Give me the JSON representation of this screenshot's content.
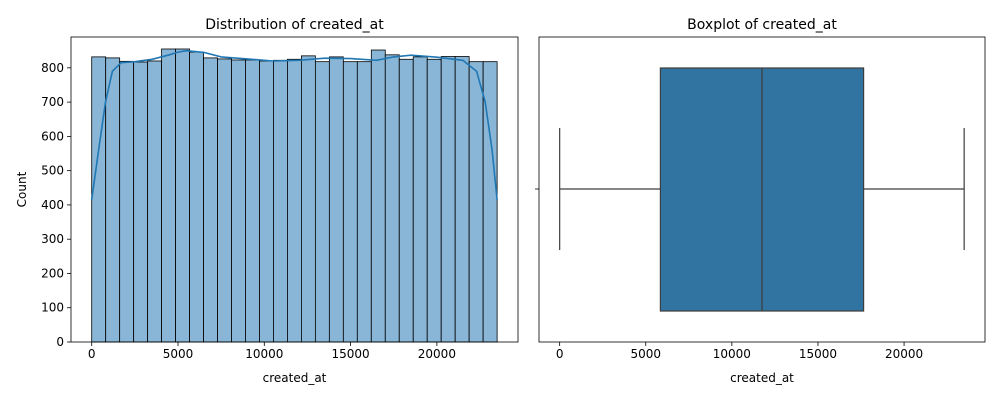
{
  "chart_data": [
    {
      "type": "histogram",
      "title": "Distribution of created_at",
      "xlabel": "created_at",
      "ylabel": "Count",
      "xlim": [
        -1200,
        24700
      ],
      "ylim": [
        0,
        890
      ],
      "xticks": [
        0,
        5000,
        10000,
        15000,
        20000
      ],
      "yticks": [
        0,
        100,
        200,
        300,
        400,
        500,
        600,
        700,
        800
      ],
      "bin_start": 0,
      "bin_width": 810,
      "counts": [
        832,
        829,
        819,
        817,
        820,
        855,
        855,
        846,
        829,
        826,
        823,
        823,
        820,
        822,
        825,
        835,
        818,
        832,
        818,
        818,
        852,
        838,
        825,
        832,
        825,
        833,
        833,
        818,
        818
      ],
      "kde": {
        "x": [
          0,
          400,
          800,
          1200,
          1700,
          2500,
          3500,
          4500,
          5000,
          5500,
          6500,
          7500,
          9000,
          10500,
          12000,
          13500,
          15000,
          16500,
          17500,
          18500,
          20000,
          21500,
          22300,
          22800,
          23200,
          23490
        ],
        "y": [
          415,
          560,
          700,
          790,
          815,
          818,
          825,
          838,
          846,
          850,
          845,
          832,
          826,
          820,
          822,
          828,
          827,
          822,
          832,
          837,
          831,
          822,
          790,
          700,
          560,
          415
        ]
      },
      "colors": {
        "bar_fill": "#89b6d7",
        "bar_edge": "#000000",
        "kde": "#1f77b4"
      }
    },
    {
      "type": "boxplot",
      "title": "Boxplot of created_at",
      "xlabel": "created_at",
      "xlim": [
        -1200,
        24700
      ],
      "xticks": [
        0,
        5000,
        10000,
        15000,
        20000
      ],
      "box": {
        "whisker_low": 0,
        "q1": 5850,
        "median": 11750,
        "q3": 17650,
        "whisker_high": 23490
      },
      "colors": {
        "box_fill": "#3274a1",
        "line": "#3d3d3d"
      }
    }
  ]
}
